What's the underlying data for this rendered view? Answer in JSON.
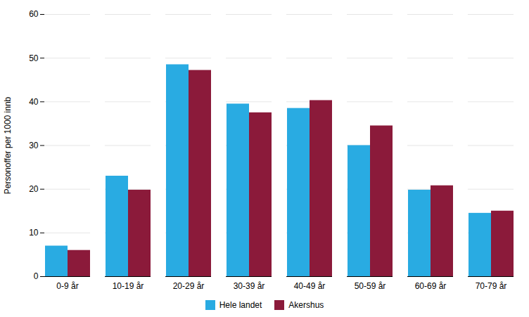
{
  "chart_data": {
    "type": "bar",
    "categories": [
      "0-9 år",
      "10-19 år",
      "20-29 år",
      "30-39 år",
      "40-49 år",
      "50-59 år",
      "60-69 år",
      "70-79 år"
    ],
    "series": [
      {
        "name": "Hele landet",
        "color": "#29ABE2",
        "values": [
          7,
          23,
          48.5,
          39.5,
          38.5,
          30,
          19.8,
          14.5
        ]
      },
      {
        "name": "Akershus",
        "color": "#8B1A3A",
        "values": [
          6,
          19.8,
          47.2,
          37.5,
          40.3,
          34.5,
          20.8,
          15.0
        ]
      }
    ],
    "ylabel": "Personoffer per 1000 innb",
    "ylim": [
      0,
      60
    ],
    "yticks": [
      0,
      10,
      20,
      30,
      40,
      50,
      60
    ],
    "grid": true,
    "legend": "bottom"
  }
}
